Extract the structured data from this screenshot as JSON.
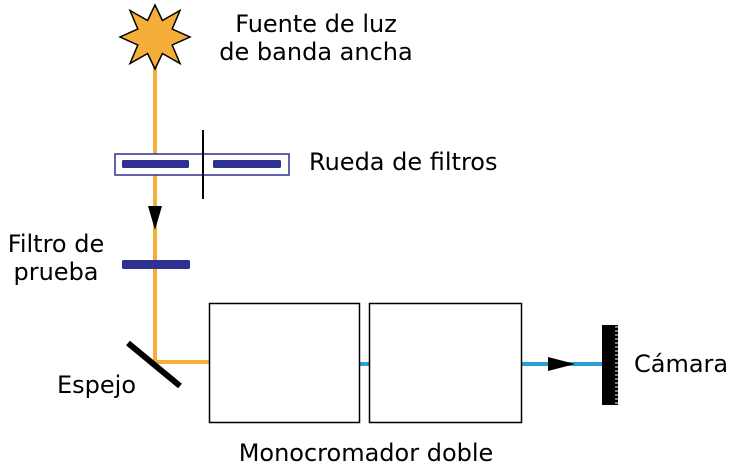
{
  "labels": {
    "source_line1": "Fuente de luz",
    "source_line2": "de banda ancha",
    "filter_wheel": "Rueda de filtros",
    "test_filter_line1": "Filtro de",
    "test_filter_line2": "prueba",
    "mirror": "Espejo",
    "monochromator": "Monocromador doble",
    "camera": "Cámara"
  },
  "colors": {
    "orange_beam": "#f5ae3a",
    "blue_beam": "#2aa0d7",
    "filter_blue": "#2e3192",
    "source_fill": "#f5ae3a",
    "outline": "#000000"
  },
  "icons": {
    "source": "starburst-icon",
    "camera": "camera-sensor-icon",
    "arrow": "arrowhead-icon"
  }
}
